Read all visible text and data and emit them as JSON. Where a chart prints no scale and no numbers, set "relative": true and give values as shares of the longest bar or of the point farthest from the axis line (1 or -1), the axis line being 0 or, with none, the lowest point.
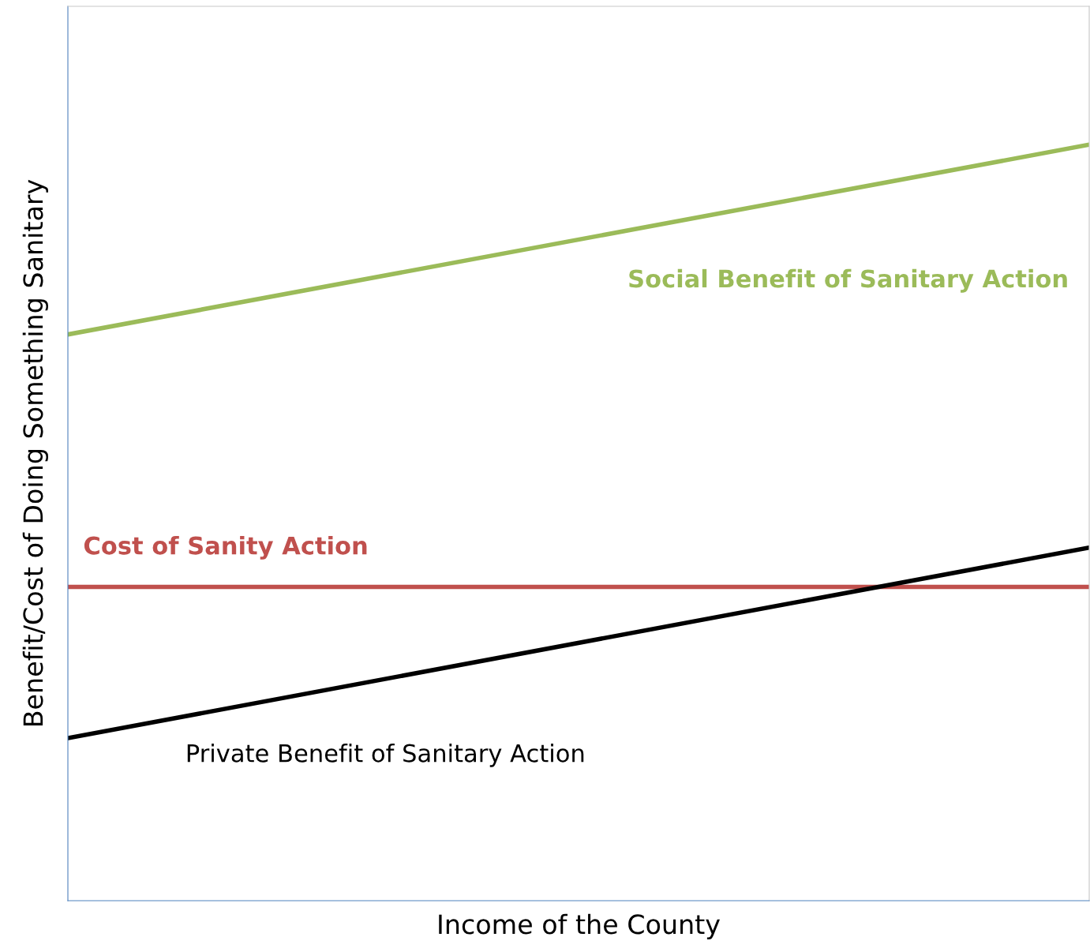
{
  "chart_data": {
    "type": "line",
    "relative": true,
    "xlabel": "Income of the County",
    "ylabel": "Benefit/Cost of Doing Something Sanitary",
    "categories": [
      null,
      null
    ],
    "legend": false,
    "series": [
      {
        "name": "Social Benefit of Sanitary Action",
        "color": "#9bbb59",
        "values": [
          0.749,
          1.0
        ]
      },
      {
        "name": "Cost of Sanity Action",
        "color": "#c0504d",
        "values": [
          0.415,
          0.415
        ]
      },
      {
        "name": "Private Benefit of Sanitary Action",
        "color": "#000000",
        "values": [
          0.215,
          0.467
        ]
      }
    ]
  }
}
